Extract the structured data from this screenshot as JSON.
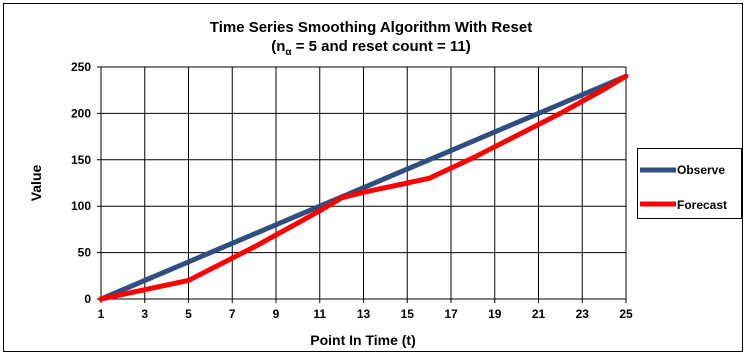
{
  "chart_data": {
    "type": "line",
    "title_main": "Time Series Smoothing Algorithm With Reset",
    "subtitle_prefix": "(n",
    "subtitle_subscript": "α",
    "subtitle_rest": " = 5 and reset count = 11)",
    "xlabel": "Point In Time (t)",
    "ylabel": "Value",
    "x": [
      1,
      2,
      3,
      4,
      5,
      6,
      7,
      8,
      9,
      10,
      11,
      12,
      13,
      14,
      15,
      16,
      17,
      18,
      19,
      20,
      21,
      22,
      23,
      24,
      25
    ],
    "xlim": [
      1,
      25
    ],
    "ylim": [
      0,
      250
    ],
    "x_ticks": [
      "1",
      "3",
      "5",
      "7",
      "9",
      "11",
      "13",
      "15",
      "17",
      "19",
      "21",
      "23",
      "25"
    ],
    "y_ticks": [
      "0",
      "50",
      "100",
      "150",
      "200",
      "250"
    ],
    "grid": "on",
    "legend_position": "right",
    "series": [
      {
        "name": "Observe",
        "color": "#2E4F7F",
        "values": [
          0,
          10,
          20,
          30,
          40,
          50,
          60,
          70,
          80,
          90,
          100,
          110,
          120,
          130,
          140,
          150,
          160,
          170,
          180,
          190,
          200,
          210,
          220,
          230,
          240
        ]
      },
      {
        "name": "Forecast",
        "color": "#FF0000",
        "values": [
          0,
          5,
          10,
          15,
          20,
          32,
          44,
          56,
          69,
          82,
          95,
          109,
          115,
          120,
          125,
          130,
          141,
          152,
          164,
          176,
          188,
          200,
          213,
          226,
          240
        ]
      }
    ]
  }
}
